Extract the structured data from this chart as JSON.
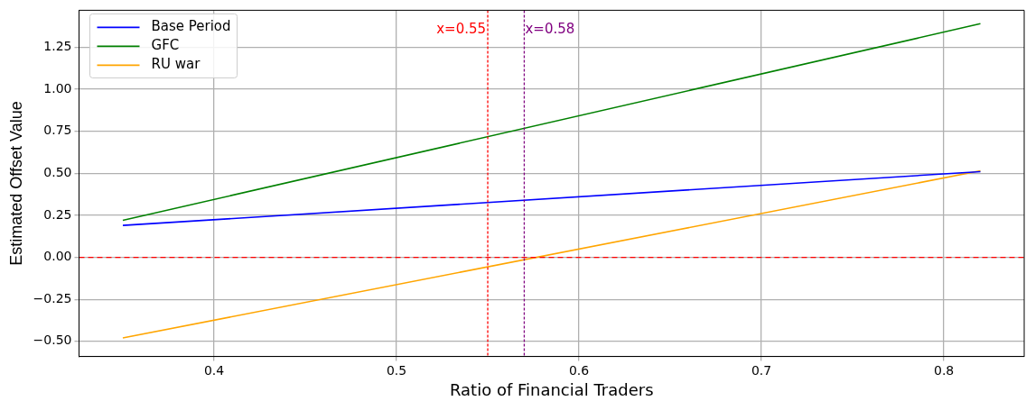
{
  "chart_data": {
    "type": "line",
    "xlabel": "Ratio of Financial Traders",
    "ylabel": "Estimated Offset Value",
    "xlim": [
      0.326,
      0.844
    ],
    "ylim": [
      -0.59,
      1.47
    ],
    "xticks": [
      0.4,
      0.5,
      0.6,
      0.7,
      0.8
    ],
    "yticks": [
      {
        "value": -0.5,
        "label": "−0.50"
      },
      {
        "value": -0.25,
        "label": "−0.25"
      },
      {
        "value": 0,
        "label": "0.00"
      },
      {
        "value": 0.25,
        "label": "0.25"
      },
      {
        "value": 0.5,
        "label": "0.50"
      },
      {
        "value": 0.75,
        "label": "0.75"
      },
      {
        "value": 1,
        "label": "1.00"
      },
      {
        "value": 1.25,
        "label": "1.25"
      }
    ],
    "grid": true,
    "legend": "top left",
    "line_style": "solid",
    "x": [
      0.35,
      0.82
    ],
    "series": [
      {
        "name": "Base Period",
        "color": "#0000ff",
        "values": [
          0.19,
          0.51
        ]
      },
      {
        "name": "GFC",
        "color": "#008000",
        "values": [
          0.22,
          1.39
        ]
      },
      {
        "name": "RU war",
        "color": "#ffa500",
        "values": [
          -0.48,
          0.515
        ]
      }
    ],
    "ref_lines": [
      {
        "axis": "y",
        "value": 0,
        "color": "#ff0000",
        "line_style": "dashed"
      },
      {
        "axis": "x",
        "value": 0.55,
        "label": "x=0.55",
        "color": "#ff0000",
        "line_style": "dotted"
      },
      {
        "axis": "x",
        "value": 0.57,
        "color": "#800080",
        "line_style": "dotted"
      }
    ],
    "annotations": [
      "x=0.58"
    ]
  }
}
